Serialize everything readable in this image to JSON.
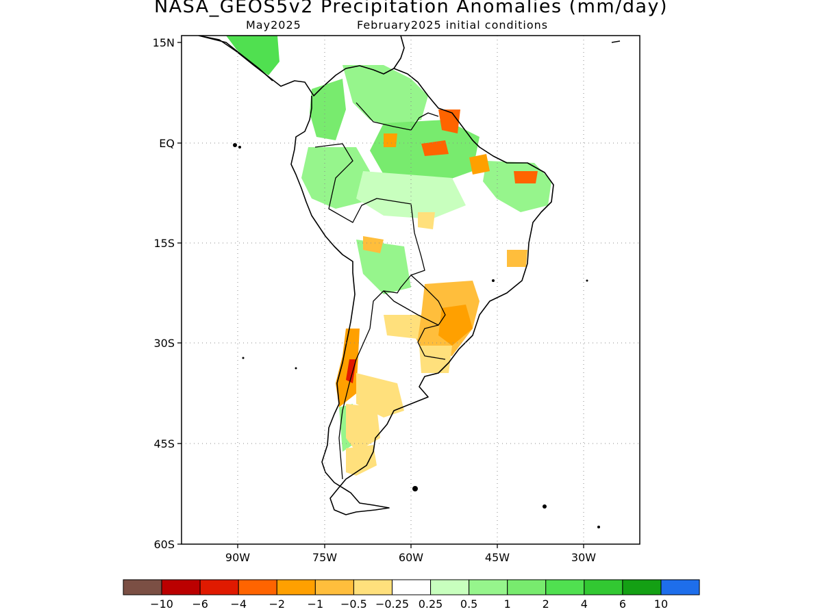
{
  "title": "NASA_GEOS5v2 Precipitation Anomalies (mm/day)",
  "subtitle_left": "May2025",
  "subtitle_right": "February2025 initial conditions",
  "lat_labels": [
    "15N",
    "EQ",
    "15S",
    "30S",
    "45S",
    "60S"
  ],
  "lon_labels": [
    "90W",
    "75W",
    "60W",
    "45W",
    "30W"
  ],
  "colorbar": {
    "labels": [
      "−10",
      "−6",
      "−4",
      "−2",
      "−1",
      "−0.5",
      "−0.25",
      "0.25",
      "0.5",
      "1",
      "2",
      "4",
      "6",
      "10"
    ],
    "colors": [
      "#7b4f44",
      "#bb0000",
      "#e01a00",
      "#ff6400",
      "#ffa000",
      "#ffbe3c",
      "#ffe07c",
      "#ffffff",
      "#c8ffbe",
      "#96f58c",
      "#78eb6e",
      "#50e050",
      "#32c832",
      "#14a014",
      "#1e6eeb"
    ]
  }
}
